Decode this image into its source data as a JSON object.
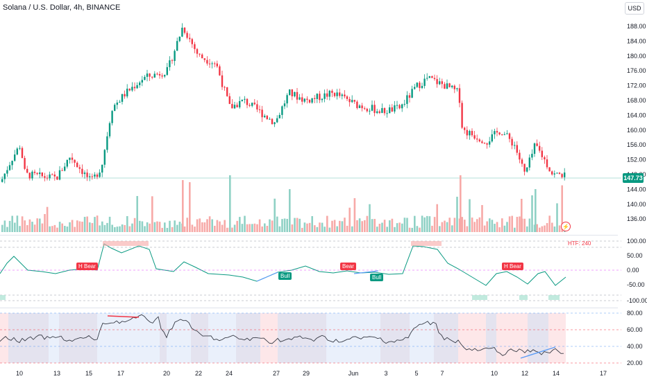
{
  "header": {
    "title": "Solana / U.S. Dollar, 4h, BINANCE",
    "currency_button": "USD"
  },
  "price_axis": {
    "ticks": [
      "188.00",
      "184.00",
      "180.00",
      "176.00",
      "172.00",
      "168.00",
      "164.00",
      "160.00",
      "156.00",
      "152.00",
      "148.00",
      "144.00",
      "140.00",
      "136.00"
    ],
    "current_price": "147.73"
  },
  "indicator1": {
    "label": "HTF: 240",
    "ticks": [
      "100.00",
      "50.00",
      "0.00",
      "-50.00",
      "-100.00"
    ],
    "badges": [
      {
        "text": "H Bear",
        "kind": "bear"
      },
      {
        "text": "Bull",
        "kind": "bull"
      },
      {
        "text": "Bear",
        "kind": "bear"
      },
      {
        "text": "Bull",
        "kind": "bull"
      },
      {
        "text": "H Bear",
        "kind": "bear"
      }
    ]
  },
  "indicator2": {
    "ticks": [
      "80.00",
      "60.00",
      "40.00",
      "20.00"
    ]
  },
  "time_axis": {
    "labels": [
      "10",
      "13",
      "15",
      "17",
      "20",
      "22",
      "24",
      "27",
      "29",
      "Jun",
      "3",
      "5",
      "7",
      "10",
      "12",
      "14",
      "17"
    ]
  },
  "colors": {
    "up": "#089981",
    "down": "#f23645",
    "up_volume": "#8fd1c5",
    "down_volume": "#f7a9a7",
    "rsi_line": "#5b9cf6",
    "price_line": "#089981"
  },
  "icons": {
    "flash": "lightning-icon"
  }
}
